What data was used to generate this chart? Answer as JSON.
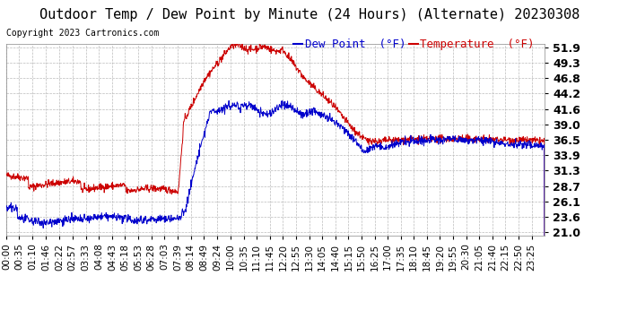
{
  "title": "Outdoor Temp / Dew Point by Minute (24 Hours) (Alternate) 20230308",
  "copyright": "Copyright 2023 Cartronics.com",
  "legend_dew": "Dew Point  (°F)",
  "legend_temp": "Temperature  (°F)",
  "ylabel_right_ticks": [
    21.0,
    23.6,
    26.1,
    28.7,
    31.3,
    33.9,
    36.5,
    39.0,
    41.6,
    44.2,
    46.8,
    49.3,
    51.9
  ],
  "ylim": [
    20.5,
    52.5
  ],
  "bg_color": "#ffffff",
  "grid_color": "#bbbbbb",
  "temp_color": "#cc0000",
  "dew_color": "#0000cc",
  "title_fontsize": 11,
  "copyright_fontsize": 7,
  "legend_fontsize": 9,
  "tick_fontsize": 7.5,
  "ytick_fontsize": 9
}
